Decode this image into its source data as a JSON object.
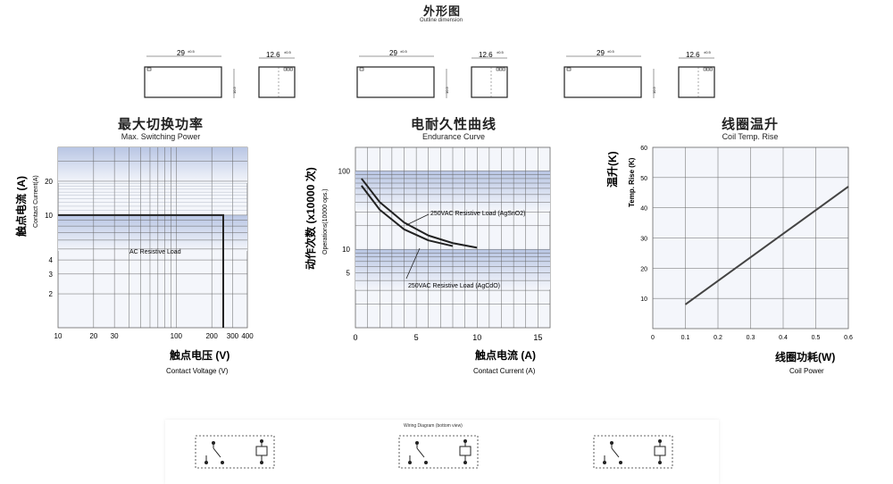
{
  "header": {
    "title_cn": "外形图",
    "title_en": "Outline dimension"
  },
  "outline": {
    "dim_width": "29",
    "dim_width_tol": "±0.5",
    "dim_depth": "12.6",
    "dim_depth_tol": "±0.5",
    "dim_side": "10.5"
  },
  "chart_data": [
    {
      "type": "line",
      "title": "最大切换功率",
      "subtitle": "Max. Switching Power",
      "xlabel_cn": "触点电压 (V)",
      "xlabel": "Contact Voltage (V)",
      "ylabel_cn": "触点电流 (A)",
      "ylabel": "Contact Current(A)",
      "xscale": "log",
      "yscale": "log",
      "xlim": [
        10,
        400
      ],
      "ylim": [
        1,
        40
      ],
      "xticks": [
        10,
        20,
        30,
        100,
        200,
        300,
        400
      ],
      "yticks": [
        2,
        3,
        4,
        10,
        20
      ],
      "series": [
        {
          "name": "AC Resistive Load",
          "x": [
            10,
            250,
            250
          ],
          "y": [
            10,
            10,
            1
          ]
        }
      ],
      "annotations": [
        "AC Resistive Load"
      ],
      "grid": true
    },
    {
      "type": "line",
      "title": "电耐久性曲线",
      "subtitle": "Endurance Curve",
      "xlabel_cn": "触点电流 (A)",
      "xlabel": "Contact Current (A)",
      "ylabel_cn": "动作次数 (x10000 次)",
      "ylabel": "Operations(10000 ops.)",
      "yscale": "log",
      "xlim": [
        0,
        16
      ],
      "ylim": [
        1,
        200
      ],
      "xticks": [
        0,
        5,
        10,
        15
      ],
      "yticks": [
        5,
        10,
        100
      ],
      "series": [
        {
          "name": "250VAC Resistive Load (AgSnO2)",
          "x": [
            0.5,
            2,
            4,
            6,
            8,
            10
          ],
          "y": [
            80,
            40,
            22,
            15,
            12,
            10.5
          ]
        },
        {
          "name": "250VAC Resistive Load (AgCdO)",
          "x": [
            0.5,
            2,
            4,
            6,
            8
          ],
          "y": [
            65,
            32,
            18,
            13,
            11
          ]
        }
      ],
      "annotations": [
        "250VAC Resistive Load (AgSnO2)",
        "250VAC  Resistive Load (AgCdO)"
      ],
      "grid": true
    },
    {
      "type": "line",
      "title": "线圈温升",
      "subtitle": "Coil Temp. Rise",
      "xlabel_cn": "线圈功耗(W)",
      "xlabel": "Coil Power",
      "ylabel_cn": "温升(K)",
      "ylabel": "Temp. Rise (K)",
      "xlim": [
        0,
        0.6
      ],
      "ylim": [
        0,
        60
      ],
      "xticks": [
        0,
        0.1,
        0.2,
        0.3,
        0.4,
        0.5,
        0.6
      ],
      "yticks": [
        10,
        20,
        30,
        40,
        50,
        60
      ],
      "series": [
        {
          "name": "Coil Temp. Rise",
          "x": [
            0.1,
            0.6
          ],
          "y": [
            8,
            47
          ]
        }
      ],
      "grid": true
    }
  ],
  "wiring": {
    "title": "Wiring Diagram (bottom view)"
  }
}
